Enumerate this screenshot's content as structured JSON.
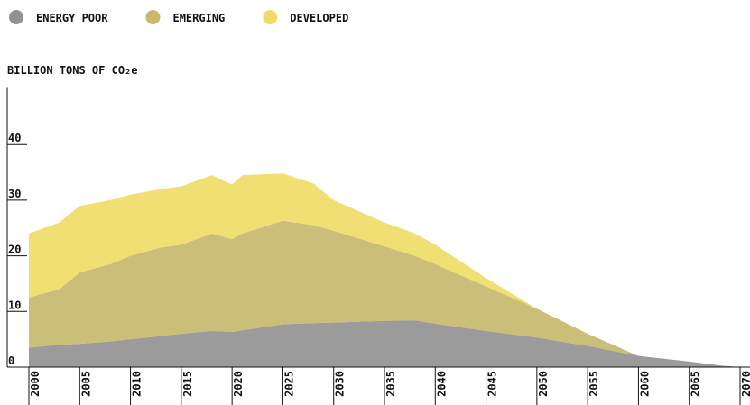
{
  "chart_data": {
    "type": "area",
    "stacked": true,
    "y_label": "BILLION TONS OF CO₂e",
    "x": [
      2000,
      2003,
      2005,
      2008,
      2010,
      2013,
      2015,
      2018,
      2020,
      2021,
      2025,
      2028,
      2030,
      2035,
      2038,
      2040,
      2045,
      2050,
      2055,
      2060,
      2065,
      2068,
      2070
    ],
    "series": [
      {
        "name": "ENERGY POOR",
        "color": "#929292",
        "values": [
          3.5,
          4,
          4.2,
          4.6,
          5,
          5.6,
          6,
          6.5,
          6.3,
          6.6,
          7.7,
          7.9,
          8,
          8.3,
          8.4,
          7.8,
          6.5,
          5.3,
          3.8,
          2,
          1,
          0.3,
          0
        ]
      },
      {
        "name": "EMERGING",
        "color": "#c7b86c",
        "values": [
          9,
          10,
          12.8,
          13.9,
          15,
          15.9,
          16,
          17.5,
          16.7,
          17.4,
          18.6,
          17.6,
          16.5,
          13.4,
          11.6,
          10.7,
          8,
          5.2,
          2.2,
          0,
          0,
          0,
          0
        ]
      },
      {
        "name": "DEVELOPED",
        "color": "#efdc66",
        "values": [
          11.5,
          12,
          12,
          11.5,
          11,
          10.5,
          10.5,
          10.5,
          9.8,
          10.5,
          8.5,
          7.5,
          5.5,
          4.3,
          4,
          3.5,
          1.5,
          0,
          0,
          0,
          0,
          0,
          0
        ]
      }
    ],
    "xlim": [
      2000,
      2070
    ],
    "xticks": [
      2000,
      2005,
      2010,
      2015,
      2020,
      2025,
      2030,
      2035,
      2040,
      2045,
      2050,
      2055,
      2060,
      2065,
      2070
    ],
    "ylim": [
      0,
      50
    ],
    "yticks": [
      0,
      10,
      20,
      30,
      40
    ]
  }
}
